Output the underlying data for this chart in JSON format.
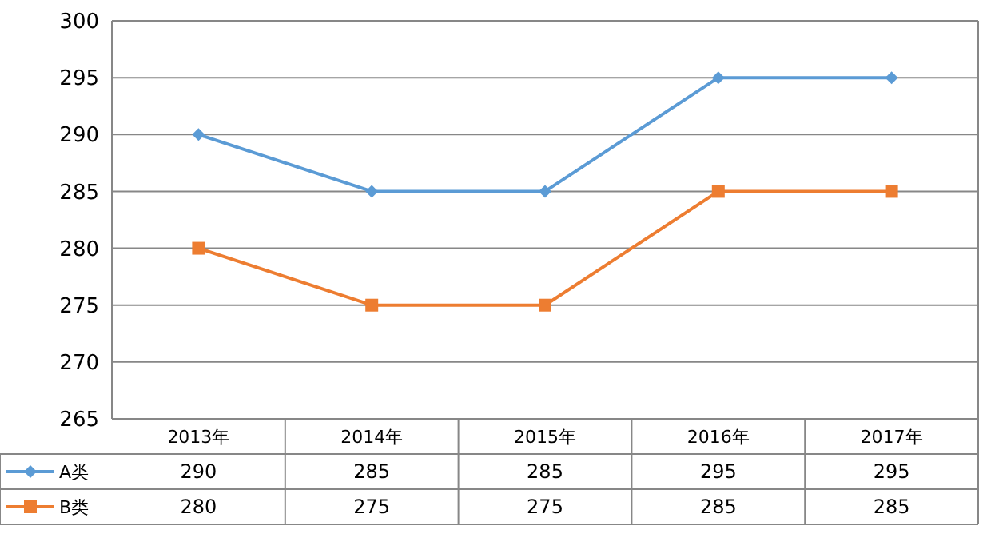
{
  "chart_data": {
    "type": "line",
    "categories": [
      "2013年",
      "2014年",
      "2015年",
      "2016年",
      "2017年"
    ],
    "series": [
      {
        "name": "A类",
        "color": "#5b9bd5",
        "marker": "diamond",
        "values": [
          290,
          285,
          285,
          295,
          295
        ]
      },
      {
        "name": "B类",
        "color": "#ed7d31",
        "marker": "square",
        "values": [
          280,
          275,
          275,
          285,
          285
        ]
      }
    ],
    "ylim": [
      265,
      300
    ],
    "yticks": [
      265,
      270,
      275,
      280,
      285,
      290,
      295,
      300
    ],
    "grid": "y",
    "legend": "bottom",
    "data_labels": true
  }
}
